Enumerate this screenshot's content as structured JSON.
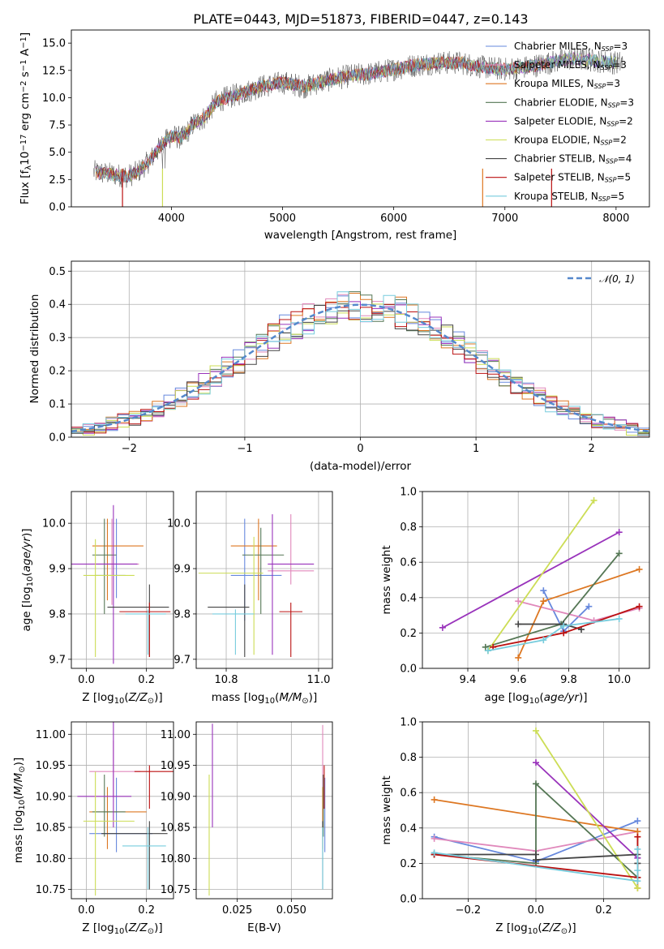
{
  "title": "PLATE=0443, MJD=51873, FIBERID=0447, z=0.143",
  "colors": [
    "#6688dd",
    "#e088bb",
    "#dd7722",
    "#557755",
    "#9933bb",
    "#ccdd55",
    "#444444",
    "#bb1111",
    "#77ccdd"
  ],
  "chart_data": [
    {
      "id": "spectrum",
      "type": "line",
      "xlabel": "wavelength [Angstrom, rest frame]",
      "ylabel": "Flux [f_λ10^-17 erg cm^-2 s^-1 A^-1]",
      "xlim": [
        3100,
        8300
      ],
      "ylim": [
        0,
        16.2
      ],
      "xticks": [
        4000,
        5000,
        6000,
        7000,
        8000
      ],
      "yticks": [
        0.0,
        2.5,
        5.0,
        7.5,
        10.0,
        12.5,
        15.0
      ],
      "legend_position": "top-right",
      "continuum": {
        "x": [
          3300,
          3450,
          3600,
          3700,
          3800,
          3900,
          4000,
          4100,
          4200,
          4300,
          4400,
          4500,
          4600,
          4800,
          5000,
          5200,
          5400,
          5600,
          5800,
          6000,
          6200,
          6400,
          6600,
          6800,
          7000,
          7200,
          7400,
          7600,
          7800,
          8000
        ],
        "y": [
          3.2,
          3.0,
          2.8,
          3.2,
          4.2,
          5.5,
          6.5,
          6.3,
          7.6,
          8.2,
          9.6,
          10.0,
          10.3,
          11.0,
          11.4,
          11.0,
          11.6,
          12.0,
          12.2,
          12.6,
          13.0,
          13.2,
          13.2,
          12.8,
          12.6,
          12.8,
          13.2,
          13.6,
          13.4,
          13.2
        ]
      },
      "series": [
        {
          "name": "Chabrier MILES",
          "nssp": "3"
        },
        {
          "name": "Salpeter MILES",
          "nssp": "3"
        },
        {
          "name": "Kroupa MILES",
          "nssp": "3"
        },
        {
          "name": "Chabrier ELODIE",
          "nssp": "3"
        },
        {
          "name": "Salpeter ELODIE",
          "nssp": "2"
        },
        {
          "name": "Kroupa ELODIE",
          "nssp": "2"
        },
        {
          "name": "Chabrier STELIB",
          "nssp": "4"
        },
        {
          "name": "Salpeter STELIB",
          "nssp": "5"
        },
        {
          "name": "Kroupa STELIB",
          "nssp": "5"
        }
      ]
    },
    {
      "id": "residuals",
      "type": "histogram",
      "xlabel": "(data-model)/error",
      "ylabel": "Normed distribution",
      "xlim": [
        -2.5,
        2.5
      ],
      "ylim": [
        0,
        0.53
      ],
      "xticks": [
        -2,
        -1,
        0,
        1,
        2
      ],
      "yticks": [
        0.0,
        0.1,
        0.2,
        0.3,
        0.4,
        0.5
      ],
      "bin_width": 0.1,
      "gaussian_label": "𝒩(0, 1)",
      "legend_position": "top-right"
    },
    {
      "id": "age-vs-Z",
      "type": "errorbar",
      "xlabel": "Z [log10(Z/Z⊙)]",
      "ylabel": "age [log10(age/yr)]",
      "xlim": [
        -0.05,
        0.29
      ],
      "ylim": [
        9.68,
        10.07
      ],
      "xticks": [
        0.0,
        0.2
      ],
      "yticks": [
        9.7,
        9.8,
        9.9,
        10.0
      ],
      "points": [
        {
          "x": 0.1,
          "xerr": [
            0.07,
            0.03
          ],
          "y": 9.885,
          "yerr": [
            0.05,
            0.125
          ]
        },
        {
          "x": 0.085,
          "xerr": [
            0.06,
            0.09
          ],
          "y": 9.91,
          "yerr": [
            0.09,
            0.1
          ]
        },
        {
          "x": 0.07,
          "xerr": [
            0.05,
            0.12
          ],
          "y": 9.95,
          "yerr": [
            0.12,
            0.06
          ]
        },
        {
          "x": 0.06,
          "xerr": [
            0.04,
            0.04
          ],
          "y": 9.93,
          "yerr": [
            0.13,
            0.08
          ]
        },
        {
          "x": 0.09,
          "xerr": [
            0.14,
            0.08
          ],
          "y": 9.91,
          "yerr": [
            0.22,
            0.13
          ]
        },
        {
          "x": 0.03,
          "xerr": [
            0.04,
            0.13
          ],
          "y": 9.885,
          "yerr": [
            0.18,
            0.08
          ]
        },
        {
          "x": 0.21,
          "xerr": [
            0.14,
            0.065
          ],
          "y": 9.815,
          "yerr": [
            0.11,
            0.05
          ]
        },
        {
          "x": 0.21,
          "xerr": [
            0.1,
            0.07
          ],
          "y": 9.805,
          "yerr": [
            0.1,
            0.02
          ]
        },
        {
          "x": 0.205,
          "xerr": [
            0.075,
            0.06
          ],
          "y": 9.8,
          "yerr": [
            0.09,
            0.01
          ]
        }
      ]
    },
    {
      "id": "age-vs-mass",
      "type": "errorbar",
      "xlabel": "mass [log10(M/M⊙)]",
      "ylabel": "",
      "xlim": [
        10.735,
        11.03
      ],
      "ylim": [
        9.68,
        10.07
      ],
      "xticks": [
        10.8,
        11.0
      ],
      "yticks": [
        9.7,
        9.8,
        9.9,
        10.0
      ],
      "points": [
        {
          "x": 10.84,
          "xerr": [
            0.03,
            0.08
          ],
          "y": 9.885,
          "yerr": [
            0.1,
            0.125
          ]
        },
        {
          "x": 10.94,
          "xerr": [
            0.05,
            0.05
          ],
          "y": 9.895,
          "yerr": [
            0.03,
            0.125
          ]
        },
        {
          "x": 10.87,
          "xerr": [
            0.06,
            0.04
          ],
          "y": 9.95,
          "yerr": [
            0.12,
            0.06
          ]
        },
        {
          "x": 10.875,
          "xerr": [
            0.04,
            0.05
          ],
          "y": 9.93,
          "yerr": [
            0.13,
            0.06
          ]
        },
        {
          "x": 10.9,
          "xerr": [
            0.01,
            0.09
          ],
          "y": 9.91,
          "yerr": [
            0.2,
            0.11
          ]
        },
        {
          "x": 10.86,
          "xerr": [
            0.12,
            0.02
          ],
          "y": 9.89,
          "yerr": [
            0.18,
            0.08
          ]
        },
        {
          "x": 10.84,
          "xerr": [
            0.08,
            0.01
          ],
          "y": 9.815,
          "yerr": [
            0.11,
            0.05
          ]
        },
        {
          "x": 10.94,
          "xerr": [
            0.025,
            0.025
          ],
          "y": 9.805,
          "yerr": [
            0.1,
            0.02
          ]
        },
        {
          "x": 10.82,
          "xerr": [
            0.05,
            0.04
          ],
          "y": 9.8,
          "yerr": [
            0.09,
            0.01
          ]
        }
      ]
    },
    {
      "id": "weight-vs-age",
      "type": "line",
      "xlabel": "age [log10(age/yr)]",
      "ylabel": "mass weight",
      "xlim": [
        9.22,
        10.12
      ],
      "ylim": [
        0,
        1.0
      ],
      "xticks": [
        9.4,
        9.6,
        9.8,
        10.0
      ],
      "yticks": [
        0.0,
        0.2,
        0.4,
        0.6,
        0.8,
        1.0
      ],
      "series": [
        {
          "x": [
            9.7,
            9.78,
            9.88
          ],
          "y": [
            0.44,
            0.21,
            0.35
          ]
        },
        {
          "x": [
            9.6,
            9.9,
            10.08
          ],
          "y": [
            0.38,
            0.27,
            0.34
          ]
        },
        {
          "x": [
            9.6,
            9.7,
            10.08
          ],
          "y": [
            0.06,
            0.38,
            0.56
          ]
        },
        {
          "x": [
            9.47,
            9.77,
            10.0
          ],
          "y": [
            0.12,
            0.25,
            0.65
          ]
        },
        {
          "x": [
            9.3,
            10.0
          ],
          "y": [
            0.23,
            0.77
          ]
        },
        {
          "x": [
            9.48,
            9.9
          ],
          "y": [
            0.1,
            0.95
          ]
        },
        {
          "x": [
            9.6,
            9.78,
            9.85
          ],
          "y": [
            0.25,
            0.25,
            0.22
          ]
        },
        {
          "x": [
            9.5,
            9.78,
            10.08
          ],
          "y": [
            0.12,
            0.2,
            0.35
          ]
        },
        {
          "x": [
            9.48,
            9.7,
            9.78,
            10.0
          ],
          "y": [
            0.1,
            0.16,
            0.24,
            0.28
          ]
        }
      ]
    },
    {
      "id": "mass-vs-Z",
      "type": "errorbar",
      "xlabel": "Z [log10(Z/Z⊙)]",
      "ylabel": "mass [log10(M/M⊙)]",
      "xlim": [
        -0.05,
        0.29
      ],
      "ylim": [
        10.735,
        11.02
      ],
      "xticks": [
        0.0,
        0.2
      ],
      "yticks": [
        10.75,
        10.8,
        10.85,
        10.9,
        10.95,
        11.0
      ],
      "points": [
        {
          "x": 0.1,
          "xerr": [
            0.09,
            0.12
          ],
          "y": 10.84,
          "yerr": [
            0.03,
            0.09
          ]
        },
        {
          "x": 0.09,
          "xerr": [
            0.08,
            0.09
          ],
          "y": 10.94,
          "yerr": [
            0.04,
            0.05
          ]
        },
        {
          "x": 0.07,
          "xerr": [
            0.06,
            0.13
          ],
          "y": 10.875,
          "yerr": [
            0.06,
            0.04
          ]
        },
        {
          "x": 0.06,
          "xerr": [
            0.04,
            0.07
          ],
          "y": 10.875,
          "yerr": [
            0.04,
            0.06
          ]
        },
        {
          "x": 0.09,
          "xerr": [
            0.12,
            0.06
          ],
          "y": 10.9,
          "yerr": [
            0.05,
            0.12
          ]
        },
        {
          "x": 0.03,
          "xerr": [
            0.04,
            0.13
          ],
          "y": 10.86,
          "yerr": [
            0.12,
            0.08
          ]
        },
        {
          "x": 0.21,
          "xerr": [
            0.16,
            0.06
          ],
          "y": 10.84,
          "yerr": [
            0.09,
            0.02
          ]
        },
        {
          "x": 0.21,
          "xerr": [
            0.05,
            0.08
          ],
          "y": 10.94,
          "yerr": [
            0.06,
            0.01
          ]
        },
        {
          "x": 0.205,
          "xerr": [
            0.085,
            0.06
          ],
          "y": 10.82,
          "yerr": [
            0.07,
            0.03
          ]
        }
      ]
    },
    {
      "id": "mass-vs-ebv",
      "type": "errorbar",
      "xlabel": "E(B-V)",
      "ylabel": "",
      "xlim": [
        0.006,
        0.069
      ],
      "ylim": [
        10.735,
        11.02
      ],
      "xticks": [
        0.025,
        0.05
      ],
      "yticks": [
        10.75,
        10.8,
        10.85,
        10.9,
        10.95,
        11.0
      ],
      "points": [
        {
          "x": 0.0655,
          "y": 10.84,
          "yerr": [
            0.03,
            0.09
          ]
        },
        {
          "x": 0.0645,
          "y": 10.94,
          "yerr": [
            0.04,
            0.075
          ]
        },
        {
          "x": 0.0645,
          "y": 10.875,
          "yerr": [
            0.06,
            0.04
          ]
        },
        {
          "x": 0.0648,
          "y": 10.875,
          "yerr": [
            0.04,
            0.06
          ]
        },
        {
          "x": 0.0135,
          "y": 10.9,
          "yerr": [
            0.05,
            0.117
          ]
        },
        {
          "x": 0.012,
          "y": 10.86,
          "yerr": [
            0.12,
            0.075
          ]
        },
        {
          "x": 0.0645,
          "y": 10.84,
          "yerr": [
            0.09,
            0.02
          ]
        },
        {
          "x": 0.0652,
          "y": 10.94,
          "yerr": [
            0.06,
            0.01
          ]
        },
        {
          "x": 0.0645,
          "y": 10.82,
          "yerr": [
            0.07,
            0.03
          ]
        }
      ]
    },
    {
      "id": "weight-vs-Z",
      "type": "line",
      "xlabel": "Z [log10(Z/Z⊙)]",
      "ylabel": "mass weight",
      "xlim": [
        -0.335,
        0.335
      ],
      "ylim": [
        0,
        1.0
      ],
      "xticks": [
        -0.2,
        0.0,
        0.2
      ],
      "yticks": [
        0.0,
        0.2,
        0.4,
        0.6,
        0.8,
        1.0
      ],
      "series": [
        {
          "x": [
            -0.3,
            0.0,
            0.3
          ],
          "y": [
            0.35,
            0.21,
            0.44
          ]
        },
        {
          "x": [
            -0.3,
            0.0,
            0.3
          ],
          "y": [
            0.34,
            0.27,
            0.38
          ]
        },
        {
          "x": [
            -0.3,
            0.3,
            0.3
          ],
          "y": [
            0.56,
            0.38,
            0.06
          ]
        },
        {
          "x": [
            -0.3,
            0.0,
            0.0,
            0.3
          ],
          "y": [
            0.25,
            0.2,
            0.65,
            0.12
          ]
        },
        {
          "x": [
            0.0,
            0.3
          ],
          "y": [
            0.77,
            0.23
          ]
        },
        {
          "x": [
            0.0,
            0.3
          ],
          "y": [
            0.95,
            0.06
          ]
        },
        {
          "x": [
            -0.3,
            0.0,
            0.0,
            0.3,
            0.3
          ],
          "y": [
            0.25,
            0.25,
            0.22,
            0.25,
            0.2
          ]
        },
        {
          "x": [
            -0.3,
            0.3,
            0.3
          ],
          "y": [
            0.25,
            0.12,
            0.35
          ]
        },
        {
          "x": [
            -0.3,
            0.3,
            0.3,
            0.3
          ],
          "y": [
            0.26,
            0.1,
            0.16,
            0.28
          ]
        }
      ]
    }
  ]
}
